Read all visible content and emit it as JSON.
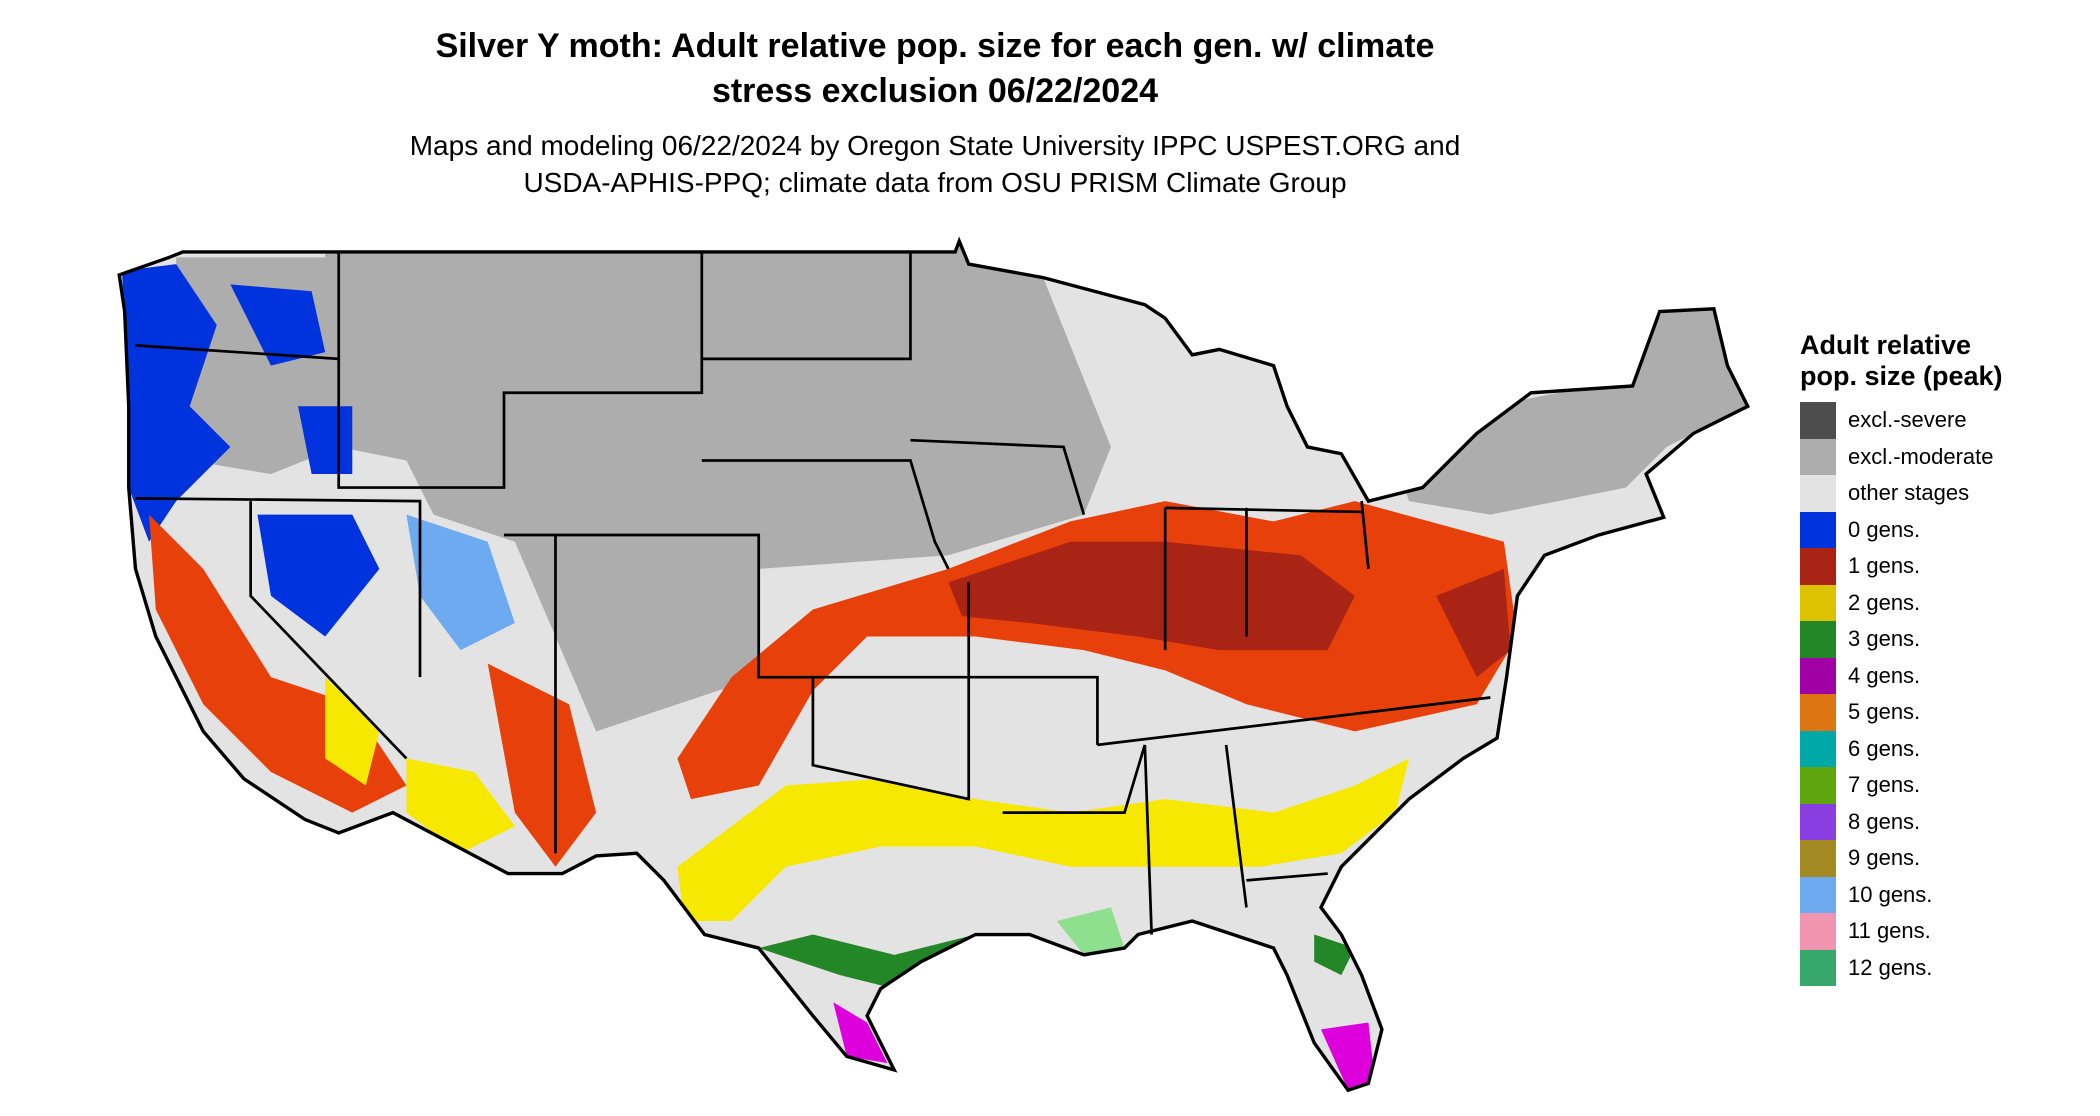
{
  "title_line1": "Silver Y moth: Adult relative pop. size for each gen. w/ climate",
  "title_line2": "stress exclusion 06/22/2024",
  "subtitle_line1": "Maps and modeling 06/22/2024 by Oregon State University IPPC USPEST.ORG and",
  "subtitle_line2": "USDA-APHIS-PPQ; climate data from OSU PRISM Climate Group",
  "legend": {
    "title": "Adult relative pop. size (peak)",
    "items": [
      {
        "label": "excl.-severe",
        "color": "#4d4d4d"
      },
      {
        "label": "excl.-moderate",
        "color": "#adadad"
      },
      {
        "label": "other stages",
        "color": "#e3e3e3"
      },
      {
        "label": "0 gens.",
        "color": "#0033dd"
      },
      {
        "label": "1 gens.",
        "color": "#aa2415"
      },
      {
        "label": "2 gens.",
        "color": "#dcc200"
      },
      {
        "label": "3 gens.",
        "color": "#238627"
      },
      {
        "label": "4 gens.",
        "color": "#a000a6"
      },
      {
        "label": "5 gens.",
        "color": "#dd7513"
      },
      {
        "label": "6 gens.",
        "color": "#00a8a8"
      },
      {
        "label": "7 gens.",
        "color": "#5ea50e"
      },
      {
        "label": "8 gens.",
        "color": "#883ee0"
      },
      {
        "label": "9 gens.",
        "color": "#a38a22"
      },
      {
        "label": "10 gens.",
        "color": "#6eaaf0"
      },
      {
        "label": "11 gens.",
        "color": "#f094b0"
      },
      {
        "label": "12 gens.",
        "color": "#36a86c"
      }
    ]
  }
}
